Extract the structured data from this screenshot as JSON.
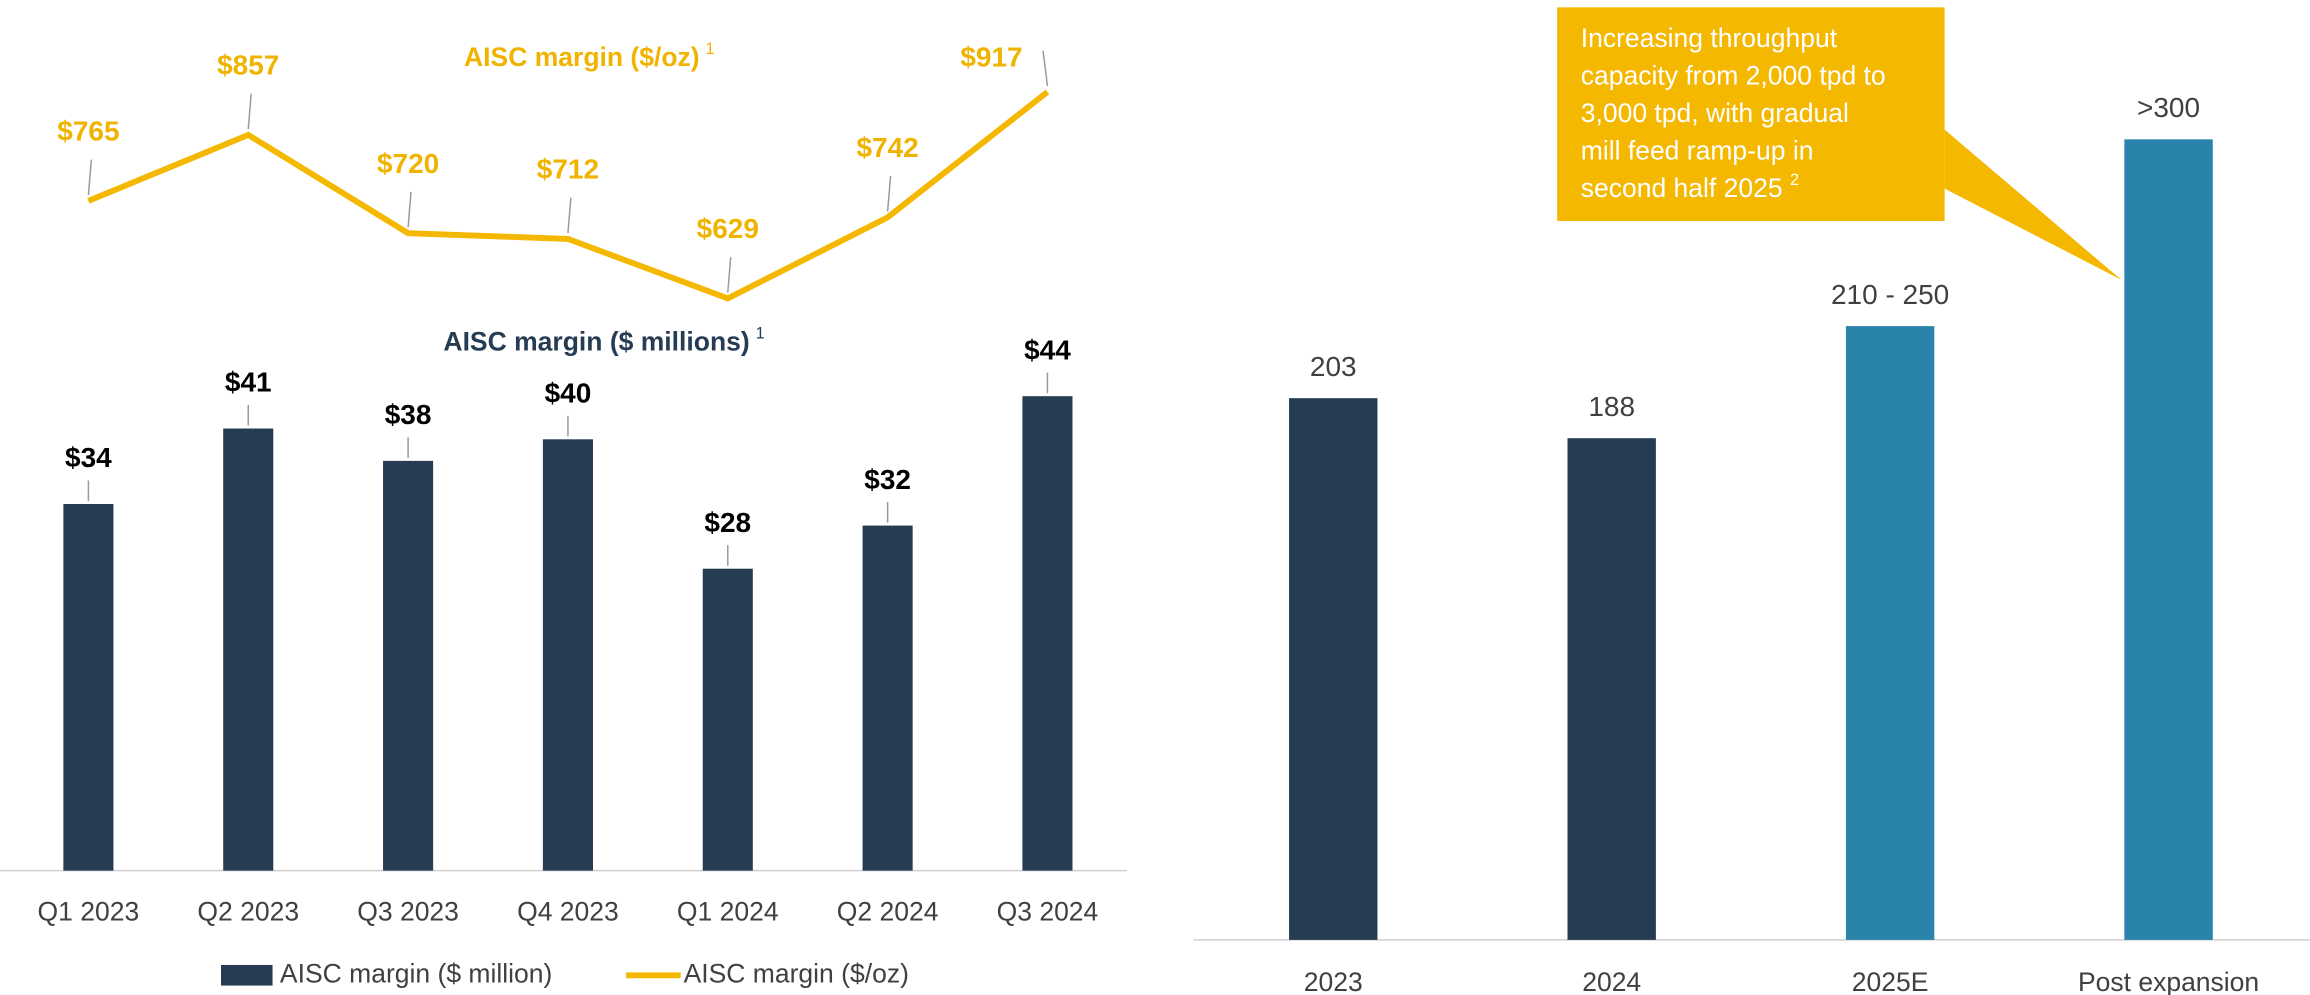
{
  "chart_data": [
    {
      "type": "bar",
      "title": "AISC margin ($ millions)",
      "title_superscript": "1",
      "categories": [
        "Q1 2023",
        "Q2 2023",
        "Q3 2023",
        "Q4 2023",
        "Q1 2024",
        "Q2 2024",
        "Q3 2024"
      ],
      "series": [
        {
          "name": "AISC margin ($ million)",
          "type": "bar",
          "color": "#263c53",
          "values": [
            34,
            41,
            38,
            40,
            28,
            32,
            44
          ],
          "value_labels": [
            "$34",
            "$41",
            "$38",
            "$40",
            "$28",
            "$32",
            "$44"
          ]
        },
        {
          "name": "AISC margin ($/oz)",
          "type": "line",
          "axis": "y2",
          "color": "#f5b800",
          "values": [
            765,
            857,
            720,
            712,
            629,
            742,
            917
          ],
          "value_labels": [
            "$765",
            "$857",
            "$720",
            "$712",
            "$629",
            "$742",
            "$917"
          ]
        }
      ],
      "ylim": [
        0,
        50
      ],
      "y2lim": [
        400,
        1000
      ],
      "line_title": "AISC margin ($/oz)",
      "line_title_superscript": "1"
    },
    {
      "type": "bar",
      "categories": [
        "2023",
        "2024",
        "2025E",
        "Post expansion"
      ],
      "values": [
        203,
        188,
        230,
        300
      ],
      "value_labels": [
        "203",
        "188",
        "210 - 250",
        ">300"
      ],
      "colors": [
        "#263c53",
        "#263c53",
        "#2a83ab",
        "#2a83ab"
      ],
      "ylim": [
        0,
        350
      ],
      "annotation": {
        "lines": [
          "Increasing throughput",
          "capacity from 2,000 tpd to",
          "3,000 tpd, with gradual",
          "mill feed ramp-up in",
          "second half 2025"
        ],
        "superscript": "2"
      }
    }
  ]
}
